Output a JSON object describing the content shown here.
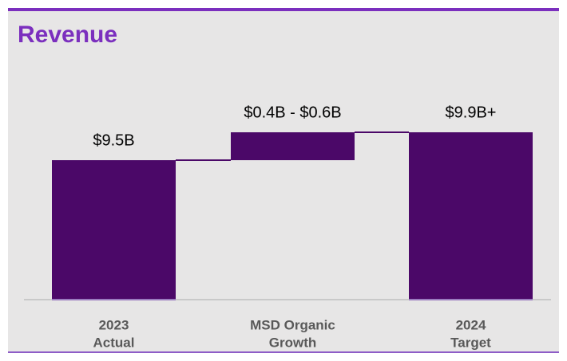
{
  "chart_data": {
    "type": "waterfall",
    "title": "Revenue",
    "categories": [
      [
        "2023",
        "Actual"
      ],
      [
        "MSD Organic",
        "Growth"
      ],
      [
        "2024",
        "Target"
      ]
    ],
    "values": [
      9.5,
      0.4,
      9.9
    ],
    "value_labels": [
      "$9.5B",
      "$0.4B - $0.6B",
      "$9.9B+"
    ],
    "kinds": [
      "total",
      "delta",
      "total"
    ],
    "color": "#4b0868",
    "ylim": [
      7.5,
      10.5
    ]
  }
}
